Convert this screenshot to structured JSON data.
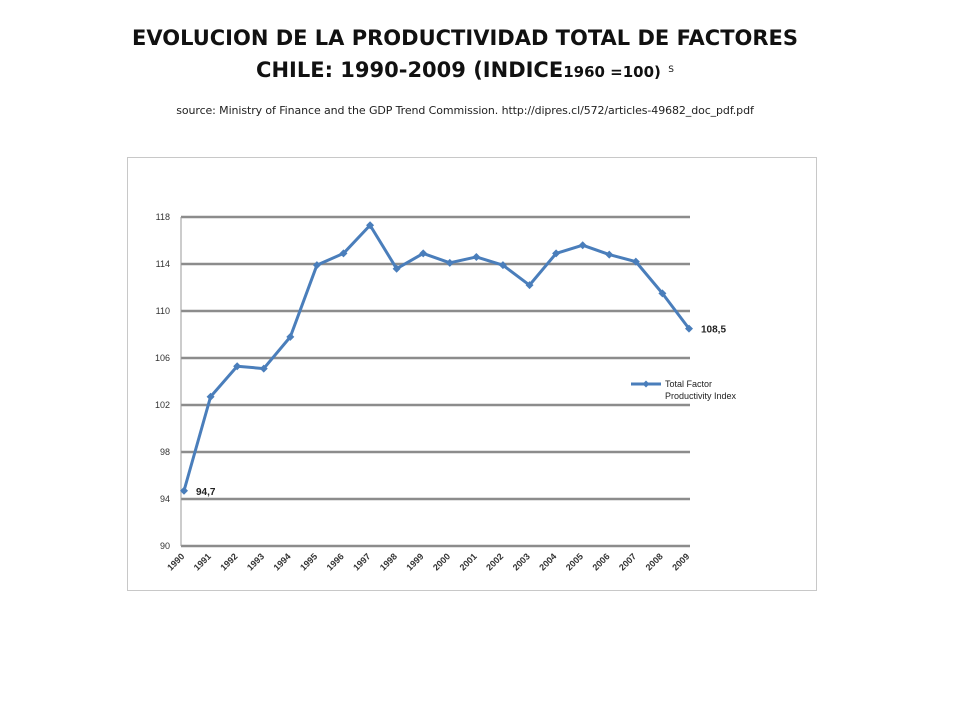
{
  "slide": {
    "title_line1": "EVOLUCION DE LA PRODUCTIVIDAD TOTAL DE FACTORES",
    "title_line2_main": "CHILE: 1990-2009 (INDICE",
    "title_line2_small": "1960 =100)",
    "title_line2_mark": "S",
    "source": "source: Ministry of Finance  and the GDP Trend Commission.  http://dipres.cl/572/articles-49682_doc_pdf.pdf"
  },
  "chart_data": {
    "type": "line",
    "title": "",
    "xlabel": "",
    "ylabel": "",
    "categories": [
      "1990",
      "1991",
      "1992",
      "1993",
      "1994",
      "1995",
      "1996",
      "1997",
      "1998",
      "1999",
      "2000",
      "2001",
      "2002",
      "2003",
      "2004",
      "2005",
      "2006",
      "2007",
      "2008",
      "2009"
    ],
    "series": [
      {
        "name": "Total Factor Productivity Index",
        "color": "#4a7ebb",
        "values": [
          94.7,
          102.7,
          105.3,
          105.1,
          107.8,
          113.9,
          114.9,
          117.3,
          113.6,
          114.9,
          114.1,
          114.6,
          113.9,
          112.2,
          114.9,
          115.6,
          114.8,
          114.2,
          111.5,
          108.5
        ]
      }
    ],
    "ylim": [
      90,
      118
    ],
    "yticks": [
      "118",
      "114",
      "110",
      "106",
      "102",
      "98",
      "94",
      "90"
    ],
    "ytick_values": [
      118,
      114,
      110,
      106,
      102,
      98,
      94,
      90
    ],
    "grid": "horizontal",
    "legend": "right",
    "legend_line1": "Total Factor",
    "legend_line2": "Productivity Index",
    "data_labels": [
      {
        "index": 0,
        "text": "94,7"
      },
      {
        "index": 19,
        "text": "108,5"
      }
    ]
  }
}
